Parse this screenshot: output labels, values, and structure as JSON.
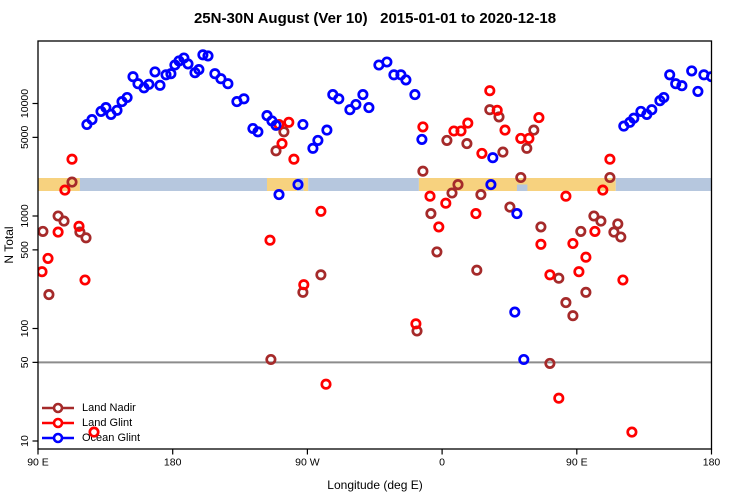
{
  "title": "25N-30N August (Ver 10)   2015-01-01 to 2020-12-18",
  "colors": {
    "land_nadir": "#A52A2A",
    "land_glint": "#FF0000",
    "ocean_glint": "#0000FF",
    "land_band": "#F7D27F",
    "ocean_band": "#B6C7DE",
    "reference_line": "#8C8C8C",
    "axis": "#000000"
  },
  "legend": {
    "items": [
      {
        "label": "Land Nadir"
      },
      {
        "label": "Land Glint"
      },
      {
        "label": "Ocean Glint"
      }
    ]
  },
  "chart_data": {
    "type": "scatter",
    "title": "25N-30N August (Ver 10)   2015-01-01 to 2020-12-18",
    "xlabel": "Longitude (deg E)",
    "ylabel": "N Total",
    "y_scale": "log",
    "ylim": [
      8.5,
      36000
    ],
    "x_axis_span_deg": 450,
    "x_ticks": [
      {
        "pos": 0,
        "label": "90 E"
      },
      {
        "pos": 90,
        "label": "180"
      },
      {
        "pos": 180,
        "label": "90 W"
      },
      {
        "pos": 270,
        "label": "0"
      },
      {
        "pos": 360,
        "label": "90 E"
      },
      {
        "pos": 450,
        "label": "180"
      }
    ],
    "y_ticks": [
      {
        "value": 10,
        "label": "10"
      },
      {
        "value": 50,
        "label": "50"
      },
      {
        "value": 100,
        "label": "100"
      },
      {
        "value": 500,
        "label": "500"
      },
      {
        "value": 1000,
        "label": "1000"
      },
      {
        "value": 5000,
        "label": "5000"
      },
      {
        "value": 10000,
        "label": "10000"
      }
    ],
    "reference_line_value": 50,
    "land_ocean_band": {
      "value_approx": 2000,
      "segments": [
        {
          "from": 0,
          "to": 28,
          "type": "land"
        },
        {
          "from": 28,
          "to": 153,
          "type": "ocean"
        },
        {
          "from": 153,
          "to": 173,
          "type": "land"
        },
        {
          "from": 173,
          "to": 177.5,
          "type": "ocean"
        },
        {
          "from": 177.5,
          "to": 180.5,
          "type": "land"
        },
        {
          "from": 180.5,
          "to": 254.5,
          "type": "ocean"
        },
        {
          "from": 254.5,
          "to": 386,
          "type": "land"
        },
        {
          "from": 386,
          "to": 450,
          "type": "ocean"
        }
      ],
      "notches": [
        {
          "from": 320,
          "to": 327,
          "type": "ocean"
        }
      ]
    },
    "series": [
      {
        "name": "Land Nadir",
        "color": "#A52A2A",
        "points": [
          [
            22.7,
            2000
          ],
          [
            13.4,
            1000
          ],
          [
            17.4,
            900
          ],
          [
            3.3,
            730
          ],
          [
            28,
            720
          ],
          [
            32.1,
            640
          ],
          [
            7.3,
            200
          ],
          [
            164.3,
            5600
          ],
          [
            159,
            3800
          ],
          [
            189,
            300
          ],
          [
            177,
            210
          ],
          [
            155.6,
            53
          ],
          [
            257.2,
            2500
          ],
          [
            262.5,
            1050
          ],
          [
            273.2,
            4700
          ],
          [
            286.6,
            4400
          ],
          [
            301.9,
            8800
          ],
          [
            308,
            7600
          ],
          [
            310.6,
            3700
          ],
          [
            326.6,
            4000
          ],
          [
            331.3,
            5800
          ],
          [
            322.6,
            2200
          ],
          [
            280.6,
            1900
          ],
          [
            276.6,
            1600
          ],
          [
            295.9,
            1550
          ],
          [
            315.3,
            1200
          ],
          [
            266.5,
            480
          ],
          [
            293.2,
            330
          ],
          [
            336,
            800
          ],
          [
            253.2,
            95
          ],
          [
            342,
            49
          ],
          [
            371.4,
            1000
          ],
          [
            376.1,
            900
          ],
          [
            362.7,
            730
          ],
          [
            387.4,
            850
          ],
          [
            384.8,
            720
          ],
          [
            389.4,
            650
          ],
          [
            348,
            280
          ],
          [
            366.1,
            210
          ],
          [
            352.7,
            170
          ],
          [
            357.4,
            130
          ],
          [
            382.1,
            2200
          ]
        ]
      },
      {
        "name": "Land Glint",
        "color": "#FF0000",
        "points": [
          [
            22.7,
            3200
          ],
          [
            18,
            1700
          ],
          [
            13.4,
            720
          ],
          [
            27.4,
            810
          ],
          [
            6.7,
            420
          ],
          [
            2.7,
            320
          ],
          [
            31.4,
            270
          ],
          [
            37.4,
            12
          ],
          [
            161,
            6500
          ],
          [
            167.6,
            6800
          ],
          [
            163,
            4400
          ],
          [
            171,
            3200
          ],
          [
            189,
            1100
          ],
          [
            155,
            610
          ],
          [
            177.6,
            245
          ],
          [
            192.4,
            32
          ],
          [
            257.2,
            6200
          ],
          [
            301.9,
            13000
          ],
          [
            306.8,
            8700
          ],
          [
            287.2,
            6700
          ],
          [
            277.9,
            5700
          ],
          [
            282.6,
            5700
          ],
          [
            296.6,
            3600
          ],
          [
            312,
            5800
          ],
          [
            328,
            4900
          ],
          [
            334.7,
            7500
          ],
          [
            322.6,
            4900
          ],
          [
            261.9,
            1500
          ],
          [
            272.5,
            1300
          ],
          [
            292.6,
            1050
          ],
          [
            267.8,
            800
          ],
          [
            252.5,
            110
          ],
          [
            336,
            560
          ],
          [
            372.1,
            730
          ],
          [
            357.4,
            570
          ],
          [
            366.1,
            430
          ],
          [
            342,
            300
          ],
          [
            361.4,
            320
          ],
          [
            390.8,
            270
          ],
          [
            348,
            24
          ],
          [
            396.8,
            12
          ],
          [
            382.1,
            3200
          ],
          [
            377.4,
            1700
          ],
          [
            352.7,
            1500
          ]
        ]
      },
      {
        "name": "Ocean Glint",
        "color": "#0000FF",
        "points": [
          [
            32.7,
            6500
          ],
          [
            36.1,
            7200
          ],
          [
            42.1,
            8500
          ],
          [
            45.4,
            9200
          ],
          [
            48.8,
            8000
          ],
          [
            52.8,
            8700
          ],
          [
            56.1,
            10400
          ],
          [
            59.5,
            11300
          ],
          [
            63.5,
            17300
          ],
          [
            66.8,
            15000
          ],
          [
            70.8,
            13800
          ],
          [
            74.1,
            14800
          ],
          [
            78.2,
            19100
          ],
          [
            81.5,
            14500
          ],
          [
            85.5,
            18000
          ],
          [
            88.8,
            18400
          ],
          [
            91.5,
            22000
          ],
          [
            94.2,
            23900
          ],
          [
            97.5,
            25400
          ],
          [
            100.2,
            22500
          ],
          [
            104.9,
            18800
          ],
          [
            107.5,
            20000
          ],
          [
            110.2,
            27100
          ],
          [
            113.6,
            26500
          ],
          [
            118.2,
            18400
          ],
          [
            122.2,
            16600
          ],
          [
            126.9,
            15000
          ],
          [
            132.9,
            10400
          ],
          [
            137.6,
            11000
          ],
          [
            143.6,
            6000
          ],
          [
            146.9,
            5600
          ],
          [
            153,
            7800
          ],
          [
            156.3,
            7000
          ],
          [
            159,
            6400
          ],
          [
            161,
            1550
          ],
          [
            173.7,
            1900
          ],
          [
            177,
            6500
          ],
          [
            183.7,
            4000
          ],
          [
            187,
            4700
          ],
          [
            193,
            5800
          ],
          [
            197,
            12000
          ],
          [
            201,
            11000
          ],
          [
            208.4,
            8800
          ],
          [
            212.4,
            9800
          ],
          [
            217.1,
            12000
          ],
          [
            221.1,
            9200
          ],
          [
            227.8,
            22000
          ],
          [
            233.1,
            23400
          ],
          [
            237.8,
            18000
          ],
          [
            242.5,
            18000
          ],
          [
            245.8,
            16200
          ],
          [
            251.8,
            12000
          ],
          [
            256.5,
            4800
          ],
          [
            303.9,
            3300
          ],
          [
            302.6,
            1900
          ],
          [
            320,
            1050
          ],
          [
            318.6,
            140
          ],
          [
            324.6,
            53
          ],
          [
            391.4,
            6300
          ],
          [
            395.4,
            6800
          ],
          [
            398.1,
            7400
          ],
          [
            402.8,
            8500
          ],
          [
            406.8,
            8000
          ],
          [
            410.1,
            8800
          ],
          [
            415.5,
            10600
          ],
          [
            418.1,
            11300
          ],
          [
            422.1,
            18000
          ],
          [
            426.1,
            15000
          ],
          [
            430.2,
            14400
          ],
          [
            436.8,
            19500
          ],
          [
            440.9,
            12800
          ],
          [
            444.9,
            18000
          ],
          [
            450,
            17300
          ]
        ]
      }
    ]
  }
}
